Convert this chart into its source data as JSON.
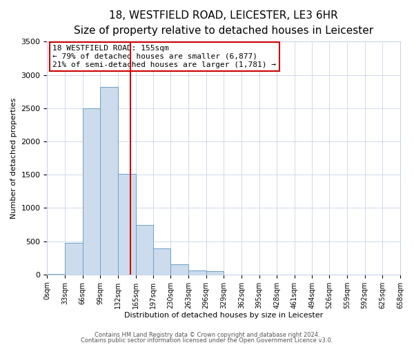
{
  "title": "18, WESTFIELD ROAD, LEICESTER, LE3 6HR",
  "subtitle": "Size of property relative to detached houses in Leicester",
  "xlabel": "Distribution of detached houses by size in Leicester",
  "ylabel": "Number of detached properties",
  "bin_edges": [
    0,
    33,
    66,
    99,
    132,
    165,
    197,
    230,
    263,
    296,
    329,
    362,
    395,
    428,
    461,
    494,
    526,
    559,
    592,
    625,
    658
  ],
  "bin_counts": [
    10,
    480,
    2500,
    2820,
    1510,
    740,
    390,
    150,
    65,
    50,
    0,
    0,
    0,
    0,
    0,
    0,
    0,
    0,
    0,
    0
  ],
  "bar_color": "#ccdcec",
  "bar_edge_color": "#6ca0c8",
  "property_line_x": 155,
  "property_line_color": "#cc0000",
  "ylim": [
    0,
    3500
  ],
  "annotation_text": "18 WESTFIELD ROAD: 155sqm\n← 79% of detached houses are smaller (6,877)\n21% of semi-detached houses are larger (1,781) →",
  "annotation_box_color": "#ffffff",
  "annotation_box_edge_color": "#cc0000",
  "footer_line1": "Contains HM Land Registry data © Crown copyright and database right 2024.",
  "footer_line2": "Contains public sector information licensed under the Open Government Licence v3.0.",
  "tick_labels": [
    "0sqm",
    "33sqm",
    "66sqm",
    "99sqm",
    "132sqm",
    "165sqm",
    "197sqm",
    "230sqm",
    "263sqm",
    "296sqm",
    "329sqm",
    "362sqm",
    "395sqm",
    "428sqm",
    "461sqm",
    "494sqm",
    "526sqm",
    "559sqm",
    "592sqm",
    "625sqm",
    "658sqm"
  ],
  "plot_bg_color": "#ffffff",
  "fig_bg_color": "#ffffff",
  "grid_color": "#c8d4e8",
  "title_fontsize": 11,
  "subtitle_fontsize": 9,
  "axis_label_fontsize": 8,
  "tick_fontsize": 7,
  "annotation_fontsize": 8,
  "footer_fontsize": 6
}
